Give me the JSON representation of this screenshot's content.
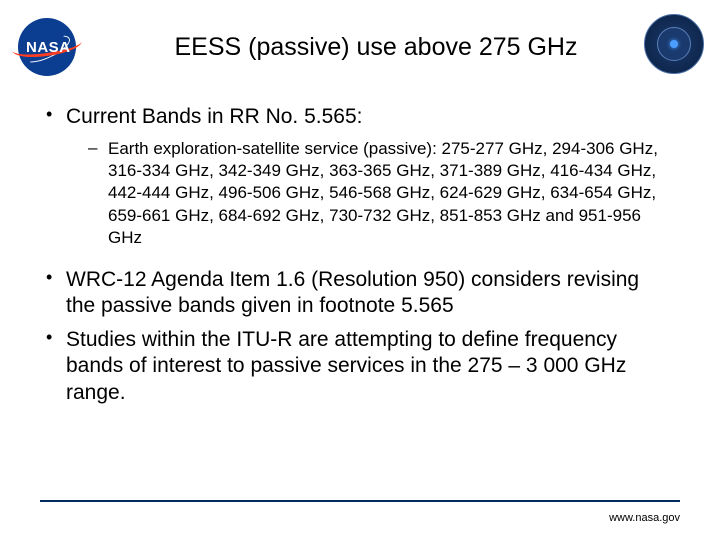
{
  "header": {
    "nasa_text": "NASA",
    "title": "EESS (passive) use above 275 GHz"
  },
  "bullets": {
    "b1": {
      "text": "Current Bands in RR No. 5.565:"
    },
    "b1_sub": {
      "text": "Earth exploration-satellite service (passive): 275-277 GHz, 294-306 GHz, 316-334 GHz, 342-349 GHz, 363-365 GHz, 371-389 GHz, 416-434 GHz, 442-444  GHz, 496-506 GHz, 546-568 GHz, 624-629 GHz, 634-654 GHz, 659-661 GHz, 684-692 GHz, 730-732 GHz, 851-853 GHz and 951-956 GHz"
    },
    "b2": {
      "text": "WRC-12 Agenda Item 1.6 (Resolution 950) considers revising the passive bands given in footnote 5.565"
    },
    "b3": {
      "text": "Studies within the ITU-R are attempting to define frequency bands of interest to passive services in the 275 – 3 000 GHz range."
    }
  },
  "footer": {
    "url": "www.nasa.gov"
  },
  "colors": {
    "nasa_blue": "#0b3d91",
    "nasa_red": "#fc3d21",
    "footer_line": "#002b5c",
    "text": "#000000",
    "background": "#ffffff"
  }
}
